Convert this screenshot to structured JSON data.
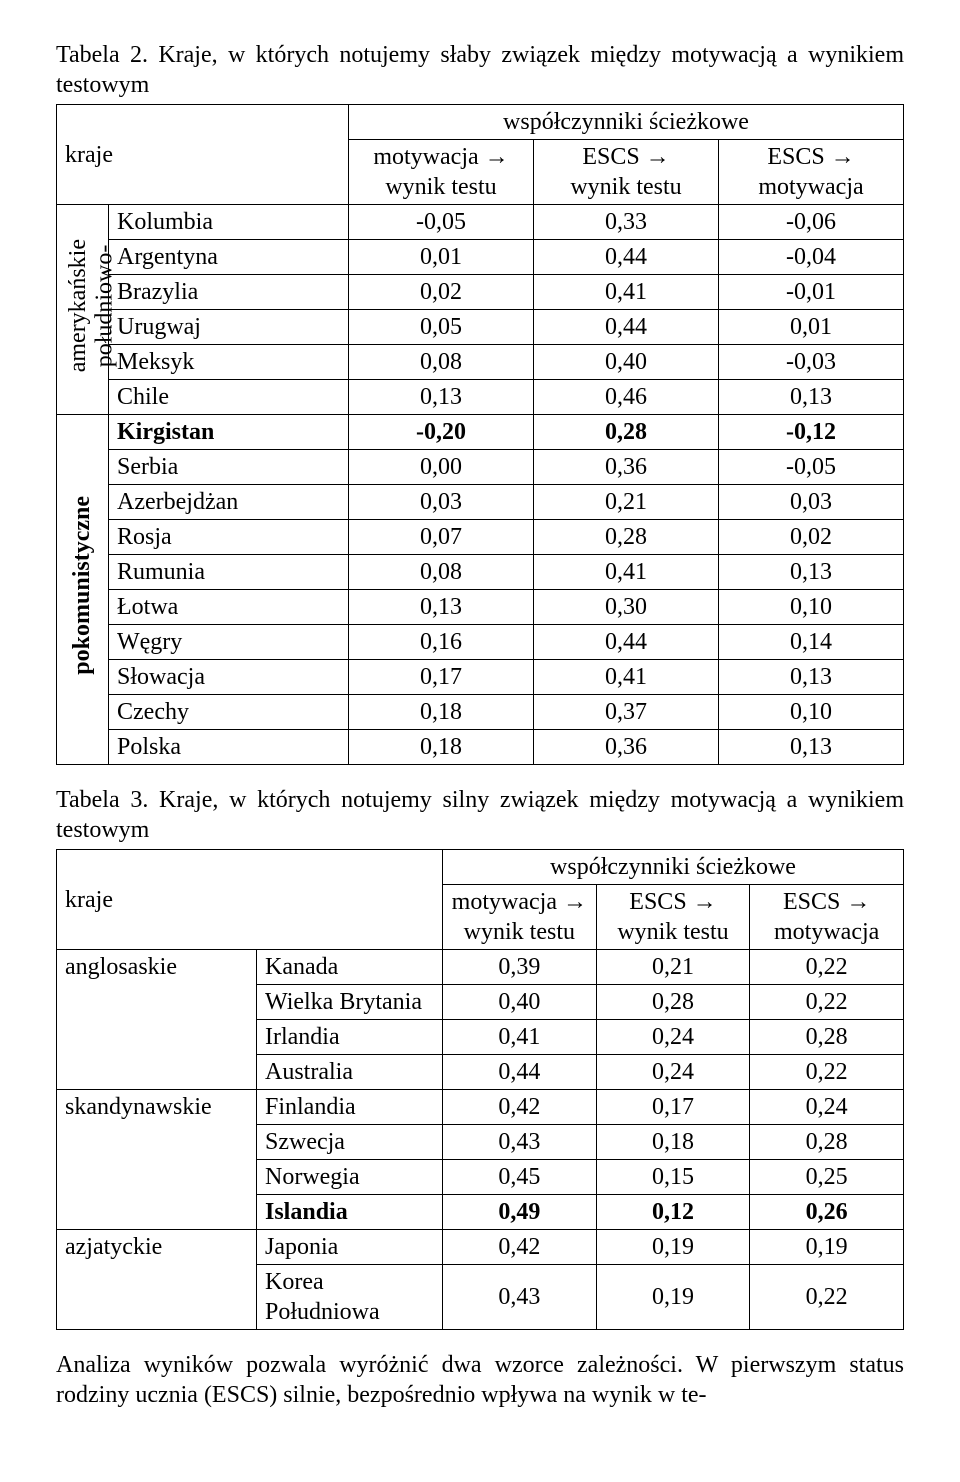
{
  "table2": {
    "caption": "Tabela 2. Kraje, w których notujemy słaby związek między motywacją a wynikiem testowym",
    "header": {
      "kraje": "kraje",
      "top": "współczynniki ścieżkowe",
      "c1a": "motywacja →",
      "c1b": "wynik testu",
      "c2a": "ESCS →",
      "c2b": "wynik testu",
      "c3a": "ESCS →",
      "c3b": "motywacja"
    },
    "group1_label_a": "południowo-",
    "group1_label_b": "amerykańskie",
    "group2_label": "pokomunistyczne",
    "group1": [
      {
        "name": "Kolumbia",
        "v": [
          "-0,05",
          "0,33",
          "-0,06"
        ]
      },
      {
        "name": "Argentyna",
        "v": [
          "0,01",
          "0,44",
          "-0,04"
        ]
      },
      {
        "name": "Brazylia",
        "v": [
          "0,02",
          "0,41",
          "-0,01"
        ]
      },
      {
        "name": "Urugwaj",
        "v": [
          "0,05",
          "0,44",
          "0,01"
        ]
      },
      {
        "name": "Meksyk",
        "v": [
          "0,08",
          "0,40",
          "-0,03"
        ]
      },
      {
        "name": "Chile",
        "v": [
          "0,13",
          "0,46",
          "0,13"
        ]
      }
    ],
    "group2": [
      {
        "name": "Kirgistan",
        "v": [
          "-0,20",
          "0,28",
          "-0,12"
        ],
        "bold": true
      },
      {
        "name": "Serbia",
        "v": [
          "0,00",
          "0,36",
          "-0,05"
        ]
      },
      {
        "name": "Azerbejdżan",
        "v": [
          "0,03",
          "0,21",
          "0,03"
        ]
      },
      {
        "name": "Rosja",
        "v": [
          "0,07",
          "0,28",
          "0,02"
        ]
      },
      {
        "name": "Rumunia",
        "v": [
          "0,08",
          "0,41",
          "0,13"
        ]
      },
      {
        "name": "Łotwa",
        "v": [
          "0,13",
          "0,30",
          "0,10"
        ]
      },
      {
        "name": "Węgry",
        "v": [
          "0,16",
          "0,44",
          "0,14"
        ]
      },
      {
        "name": "Słowacja",
        "v": [
          "0,17",
          "0,41",
          "0,13"
        ]
      },
      {
        "name": "Czechy",
        "v": [
          "0,18",
          "0,37",
          "0,10"
        ]
      },
      {
        "name": "Polska",
        "v": [
          "0,18",
          "0,36",
          "0,13"
        ]
      }
    ]
  },
  "table3": {
    "caption": "Tabela 3. Kraje, w których notujemy silny związek między motywacją a wynikiem testowym",
    "header": {
      "kraje": "kraje",
      "top": "współczynniki ścieżkowe",
      "c1a": "motywacja →",
      "c1b": "wynik testu",
      "c2a": "ESCS →",
      "c2b": "wynik testu",
      "c3a": "ESCS →",
      "c3b": "motywacja"
    },
    "groups": [
      {
        "label": "anglosaskie",
        "rows": [
          {
            "name": "Kanada",
            "v": [
              "0,39",
              "0,21",
              "0,22"
            ]
          },
          {
            "name": "Wielka Brytania",
            "v": [
              "0,40",
              "0,28",
              "0,22"
            ]
          },
          {
            "name": "Irlandia",
            "v": [
              "0,41",
              "0,24",
              "0,28"
            ]
          },
          {
            "name": "Australia",
            "v": [
              "0,44",
              "0,24",
              "0,22"
            ]
          }
        ]
      },
      {
        "label": "skandynawskie",
        "rows": [
          {
            "name": "Finlandia",
            "v": [
              "0,42",
              "0,17",
              "0,24"
            ]
          },
          {
            "name": "Szwecja",
            "v": [
              "0,43",
              "0,18",
              "0,28"
            ]
          },
          {
            "name": "Norwegia",
            "v": [
              "0,45",
              "0,15",
              "0,25"
            ]
          },
          {
            "name": "Islandia",
            "v": [
              "0,49",
              "0,12",
              "0,26"
            ],
            "bold": true
          }
        ]
      },
      {
        "label": "azjatyckie",
        "rows": [
          {
            "name": "Japonia",
            "v": [
              "0,42",
              "0,19",
              "0,19"
            ]
          },
          {
            "name": "Korea Południowa",
            "v": [
              "0,43",
              "0,19",
              "0,22"
            ]
          }
        ]
      }
    ]
  },
  "paragraph": "Analiza wyników pozwala wyróżnić dwa wzorce zależności. W pierwszym status rodziny ucznia (ESCS) silnie, bezpośrednio wpływa na wynik w te-"
}
